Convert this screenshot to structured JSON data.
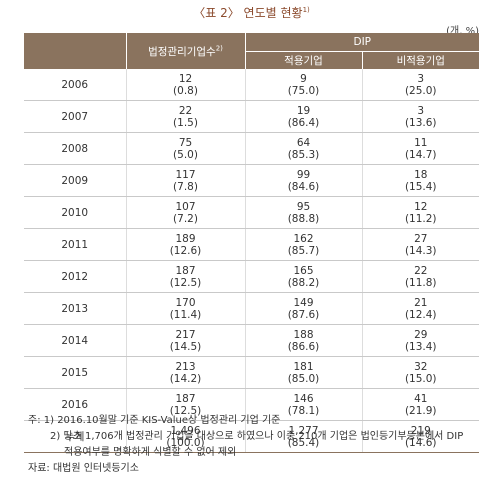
{
  "title": "〈표 2〉 연도별 현황",
  "title_note": "1)",
  "unit": "(개, %)",
  "headers": {
    "col1": "법정관리기업수",
    "col1_note": "2)",
    "dip": "DIP",
    "sub1": "적용기업",
    "sub2": "비적용기업"
  },
  "rows": [
    {
      "year": "2006",
      "c1": "12",
      "c1p": "(0.8)",
      "c2": "9",
      "c2p": "(75.0)",
      "c3": "3",
      "c3p": "(25.0)"
    },
    {
      "year": "2007",
      "c1": "22",
      "c1p": "(1.5)",
      "c2": "19",
      "c2p": "(86.4)",
      "c3": "3",
      "c3p": "(13.6)"
    },
    {
      "year": "2008",
      "c1": "75",
      "c1p": "(5.0)",
      "c2": "64",
      "c2p": "(85.3)",
      "c3": "11",
      "c3p": "(14.7)"
    },
    {
      "year": "2009",
      "c1": "117",
      "c1p": "(7.8)",
      "c2": "99",
      "c2p": "(84.6)",
      "c3": "18",
      "c3p": "(15.4)"
    },
    {
      "year": "2010",
      "c1": "107",
      "c1p": "(7.2)",
      "c2": "95",
      "c2p": "(88.8)",
      "c3": "12",
      "c3p": "(11.2)"
    },
    {
      "year": "2011",
      "c1": "189",
      "c1p": "(12.6)",
      "c2": "162",
      "c2p": "(85.7)",
      "c3": "27",
      "c3p": "(14.3)"
    },
    {
      "year": "2012",
      "c1": "187",
      "c1p": "(12.5)",
      "c2": "165",
      "c2p": "(88.2)",
      "c3": "22",
      "c3p": "(11.8)"
    },
    {
      "year": "2013",
      "c1": "170",
      "c1p": "(11.4)",
      "c2": "149",
      "c2p": "(87.6)",
      "c3": "21",
      "c3p": "(12.4)"
    },
    {
      "year": "2014",
      "c1": "217",
      "c1p": "(14.5)",
      "c2": "188",
      "c2p": "(86.6)",
      "c3": "29",
      "c3p": "(13.4)"
    },
    {
      "year": "2015",
      "c1": "213",
      "c1p": "(14.2)",
      "c2": "181",
      "c2p": "(85.0)",
      "c3": "32",
      "c3p": "(15.0)"
    },
    {
      "year": "2016",
      "c1": "187",
      "c1p": "(12.5)",
      "c2": "146",
      "c2p": "(78.1)",
      "c3": "41",
      "c3p": "(21.9)"
    }
  ],
  "total": {
    "year": "누계",
    "c1": "1,496",
    "c1p": "(100.0)",
    "c2": "1,277",
    "c2p": "(85.4)",
    "c3": "219",
    "c3p": "(14.6)"
  },
  "notes": {
    "n1": "주: 1) 2016.10월말 기준 KIS-Value상 법정관리 기업 기준",
    "n2a": "2) 당초 1,706개 법정관리 기업을 대상으로 하였으나 이중 210개 기업은 법인등기부등본에서 DIP",
    "n2b": "적용여부를 명확하게 식별할 수 없어 제외",
    "source": "자료: 대법원 인터넷등기소"
  },
  "colors": {
    "header_bg": "#8a735e",
    "title": "#8b4a2c"
  }
}
